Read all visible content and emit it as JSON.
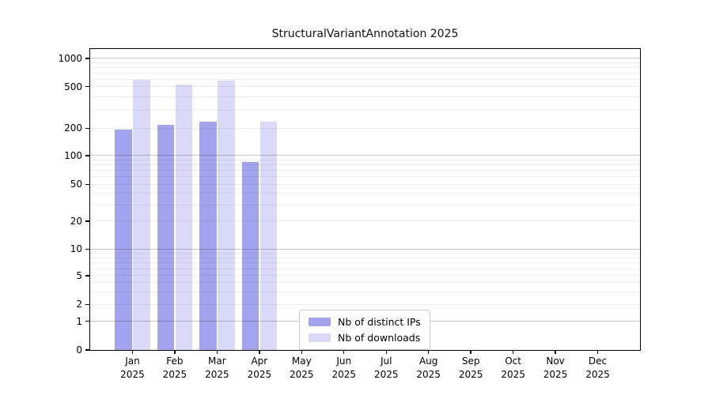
{
  "title": "StructuralVariantAnnotation 2025",
  "chart_data": {
    "type": "bar",
    "title": "StructuralVariantAnnotation 2025",
    "categories": [
      "Jan 2025",
      "Feb 2025",
      "Mar 2025",
      "Apr 2025",
      "May 2025",
      "Jun 2025",
      "Jul 2025",
      "Aug 2025",
      "Sep 2025",
      "Oct 2025",
      "Nov 2025",
      "Dec 2025"
    ],
    "series": [
      {
        "name": "Nb of distinct IPs",
        "color": "#a4a4ee",
        "values": [
          195,
          215,
          230,
          85,
          null,
          null,
          null,
          null,
          null,
          null,
          null,
          null
        ]
      },
      {
        "name": "Nb of downloads",
        "color": "#dadaf8",
        "values": [
          590,
          530,
          580,
          230,
          null,
          null,
          null,
          null,
          null,
          null,
          null,
          null
        ]
      }
    ],
    "xlabel": "",
    "ylabel": "",
    "y_ticks": [
      0,
      1,
      2,
      5,
      10,
      20,
      50,
      100,
      200,
      500,
      1000
    ],
    "ylim": [
      0,
      1250
    ],
    "scale": "logarithmic with zero baseline",
    "grid": "horizontal major and log-minor gridlines, drawn over bars",
    "legend_position": "inside bottom-center"
  },
  "colors": {
    "major_gridline": "#c7c7c7",
    "minor_gridline": "#ececec",
    "axis": "#000000",
    "background": "#ffffff"
  }
}
